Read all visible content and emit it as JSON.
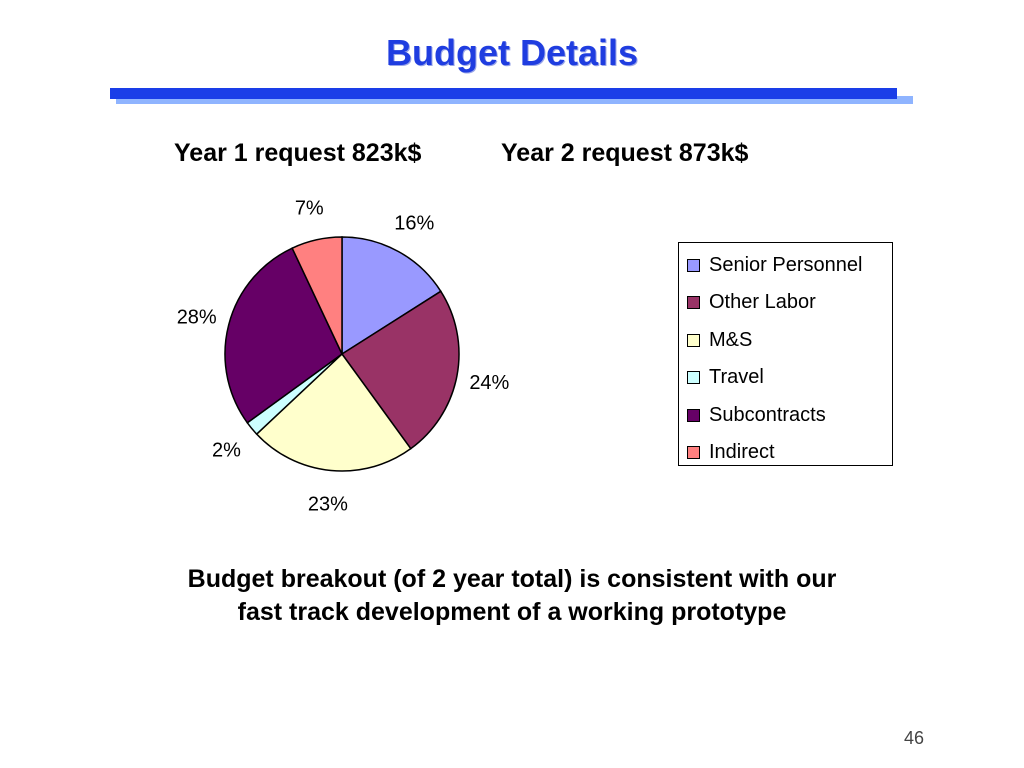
{
  "slide": {
    "title": "Budget Details",
    "year1": "Year 1 request 823k$",
    "year2": "Year 2 request 873k$",
    "caption_line1": "Budget breakout (of 2 year total)  is consistent with our",
    "caption_line2": "fast track development of a working prototype",
    "page_number": "46"
  },
  "chart_data": {
    "type": "pie",
    "title": "",
    "categories": [
      "Senior Personnel",
      "Other Labor",
      "M&S",
      "Travel",
      "Subcontracts",
      "Indirect"
    ],
    "values": [
      16,
      24,
      23,
      2,
      28,
      7
    ],
    "labels": [
      "16%",
      "24%",
      "23%",
      "2%",
      "28%",
      "7%"
    ],
    "colors": [
      "#9999ff",
      "#993366",
      "#ffffcc",
      "#ccffff",
      "#660066",
      "#ff8080"
    ],
    "start_angle_deg": 0,
    "direction": "clockwise",
    "legend_position": "right"
  }
}
